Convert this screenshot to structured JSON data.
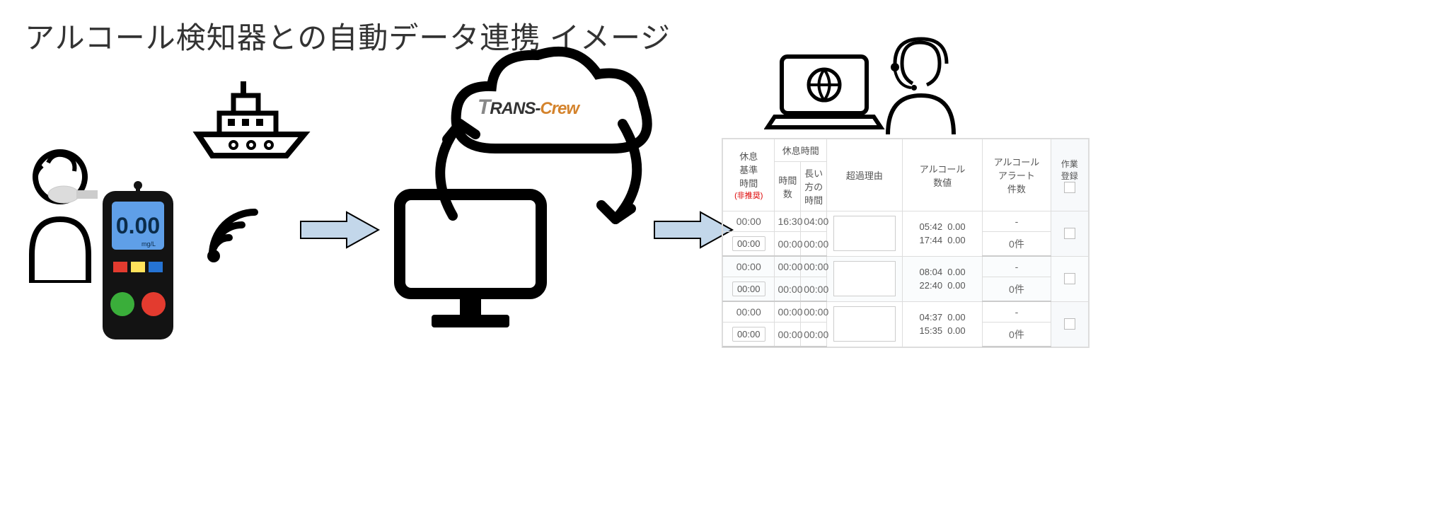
{
  "title": "アルコール検知器との自動データ連携 イメージ",
  "breathalyzer": {
    "display": "0.00",
    "unit": "mg/L"
  },
  "cloud_brand": {
    "part1": "T",
    "part2": "RANS-",
    "part3": "Crew"
  },
  "table": {
    "headers": {
      "rest_base_time": "休息\n基準\n時間",
      "rest_base_warn": "(非推奨)",
      "rest_time": "休息時間",
      "hours": "時間数",
      "longest": "長い方の\n時間",
      "excess_reason": "超過理由",
      "alcohol_value": "アルコール\n数値",
      "alcohol_alert_count": "アルコール\nアラート\n件数",
      "work_reg": "作業\n登録"
    },
    "rows": [
      {
        "base": "00:00",
        "hours": "16:30",
        "longest": "04:00",
        "alc1_time": "05:42",
        "alc1_val": "0.00",
        "alc2_time": "17:44",
        "alc2_val": "0.00",
        "alert_dash": "-",
        "alert_count": "0件"
      },
      {
        "base": "00:00",
        "hours": "00:00",
        "longest": "00:00",
        "alc1_time": "08:04",
        "alc1_val": "0.00",
        "alc2_time": "22:40",
        "alc2_val": "0.00",
        "alert_dash": "-",
        "alert_count": "0件"
      },
      {
        "base": "00:00",
        "hours": "00:00",
        "longest": "00:00",
        "alc1_time": "04:37",
        "alc1_val": "0.00",
        "alc2_time": "15:35",
        "alc2_val": "0.00",
        "alert_dash": "-",
        "alert_count": "0件"
      }
    ],
    "zero": "00:00"
  },
  "colors": {
    "arrow_fill": "#c3d7ea",
    "device_body": "#131313",
    "device_screen": "#5f9fe8",
    "device_display_text": "#0b2c4a",
    "btn_red": "#e33b2f",
    "btn_yellow": "#ffe25b",
    "btn_blue": "#2573d3",
    "btn_green": "#3aae3a"
  }
}
